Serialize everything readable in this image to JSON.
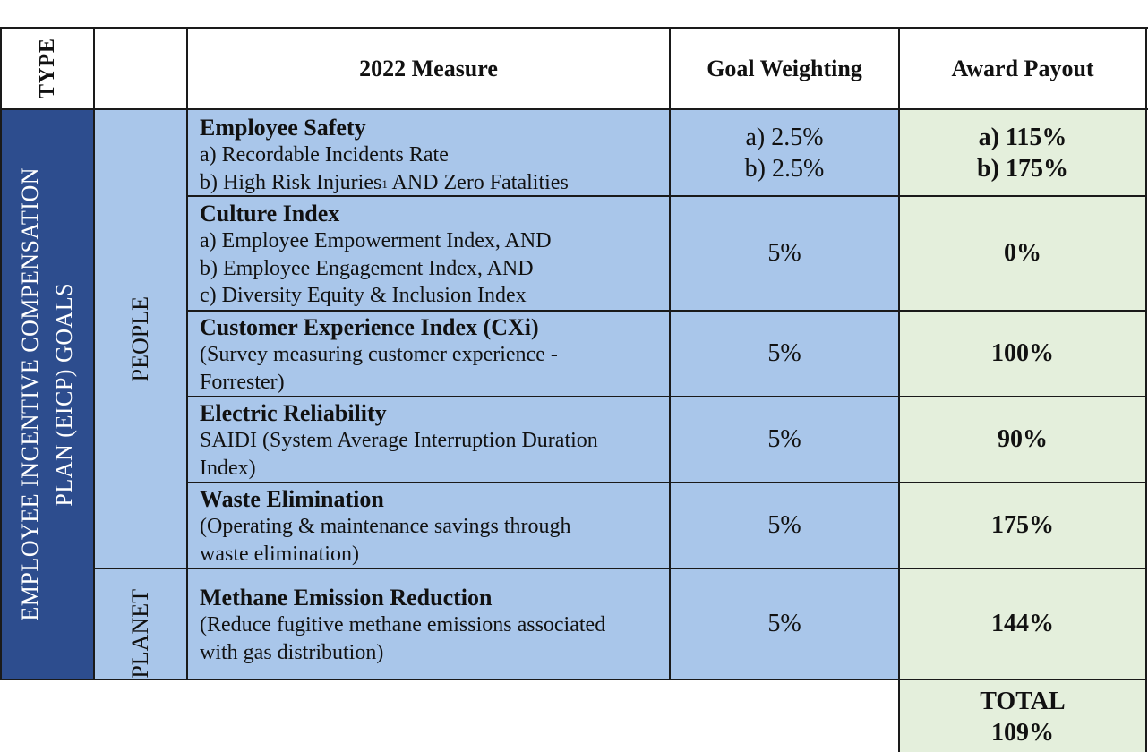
{
  "colors": {
    "type_band": "#2d4d8e",
    "blue_cell": "#a9c6ea",
    "green_cell": "#e4efdc",
    "border": "#1a1a1a"
  },
  "header": {
    "type": "TYPE",
    "measure": "2022 Measure",
    "weighting": "Goal Weighting",
    "payout": "Award Payout"
  },
  "type_label": {
    "line1": "EMPLOYEE INCENTIVE COMPENSATION",
    "line2": "PLAN (EICP) GOALS"
  },
  "groups": {
    "people": "PEOPLE",
    "planet": "PLANET"
  },
  "rows": [
    {
      "title": "Employee Safety",
      "lines": [
        "a) Recordable Incidents Rate",
        "b) High Risk Injuries"
      ],
      "sup": "1",
      "line_tail": " AND Zero Fatalities",
      "weighting": [
        "a) 2.5%",
        "b) 2.5%"
      ],
      "payout": [
        "a) 115%",
        "b) 175%"
      ]
    },
    {
      "title": "Culture Index",
      "lines": [
        "a) Employee Empowerment Index, AND",
        "b) Employee Engagement Index, AND",
        "c) Diversity Equity & Inclusion Index"
      ],
      "weighting": "5%",
      "payout": "0%"
    },
    {
      "title": "Customer Experience Index (CXi)",
      "lines": [
        "(Survey measuring customer experience -",
        "Forrester)"
      ],
      "weighting": "5%",
      "payout": "100%"
    },
    {
      "title": "Electric Reliability",
      "lines": [
        "SAIDI (System Average Interruption Duration",
        "Index)"
      ],
      "weighting": "5%",
      "payout": "90%"
    },
    {
      "title": "Waste Elimination",
      "lines": [
        "(Operating & maintenance savings through",
        "waste elimination)"
      ],
      "weighting": "5%",
      "payout": "175%"
    },
    {
      "title": "Methane Emission Reduction",
      "lines": [
        "(Reduce fugitive methane emissions associated",
        "with gas distribution)"
      ],
      "weighting": "5%",
      "payout": "144%"
    }
  ],
  "total": {
    "label": "TOTAL",
    "value": "109%"
  }
}
